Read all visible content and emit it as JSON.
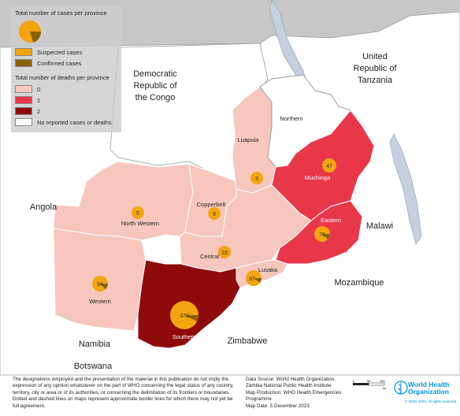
{
  "legend": {
    "title_cases": "Total number of cases per province",
    "suspected_label": "Suspected cases",
    "confirmed_label": "Confirmed cases",
    "title_deaths": "Total number of deaths per province",
    "deaths_0": "0",
    "deaths_1": "1",
    "deaths_2": "2",
    "no_reported": "No reported cases or deaths"
  },
  "colors": {
    "water": "#c7c7c7",
    "neighbor": "#ffffff",
    "deaths_0": "#f7c7bd",
    "deaths_1": "#e9374a",
    "deaths_2": "#8f0b0b",
    "no_report": "#ffffff",
    "suspected": "#f3a50f",
    "confirmed": "#8a6100",
    "lake": "#c6d0dc"
  },
  "countries": {
    "drc": "Democratic Republic of the Congo",
    "tanzania": "United Republic of Tanzania",
    "angola": "Angola",
    "malawi": "Malawi",
    "mozambique": "Mozambique",
    "zimbabwe": "Zimbabwe",
    "namibia": "Namibia",
    "botswana": "Botswana"
  },
  "provinces": {
    "northern": {
      "name": "Northern",
      "deaths": "No reported cases or deaths"
    },
    "luapula": {
      "name": "Luapula",
      "cases": "3",
      "deaths": 0
    },
    "muchinga": {
      "name": "Muchinga",
      "cases": "47",
      "deaths": 1
    },
    "copperbelt": {
      "name": "Copperbelt",
      "cases": "9",
      "deaths": 0
    },
    "north_western": {
      "name": "North Western",
      "cases": "5",
      "deaths": 0
    },
    "central": {
      "name": "Central",
      "cases": "19",
      "deaths": 0
    },
    "eastern": {
      "name": "Eastern",
      "cases": "76",
      "deaths": 1
    },
    "lusaka": {
      "name": "Lusaka",
      "cases": "87",
      "deaths": 0
    },
    "western": {
      "name": "Western",
      "cases": "94",
      "deaths": 0
    },
    "southern": {
      "name": "Southern",
      "cases": "372",
      "deaths": 2
    }
  },
  "footer": {
    "disclaimer": "The designations employed and the presentation of the material in this publication do not imply the expression of any opinion whatsoever on the part of WHO concerning the legal status of any country, territory, city or area or of its authorities, or concerning the delimitation of its frontiers or boundaries. Dotted and dashed lines on maps represent approximate border lines for which there may not yet be full agreement.",
    "source_1": "Data Source: World Health Organization,",
    "source_2": "Zambia National Public Health Institute",
    "source_3": "Map Production: WHO Health Emergencies",
    "source_4": "Programme",
    "source_5": "Map Date: 5 December 2023",
    "scale_0": "0",
    "scale_50": "50",
    "scale_100": "100",
    "scale_unit": "km",
    "who_name_1": "World Health",
    "who_name_2": "Organization",
    "who_copyright": "© WHO 2023, All rights reserved."
  }
}
